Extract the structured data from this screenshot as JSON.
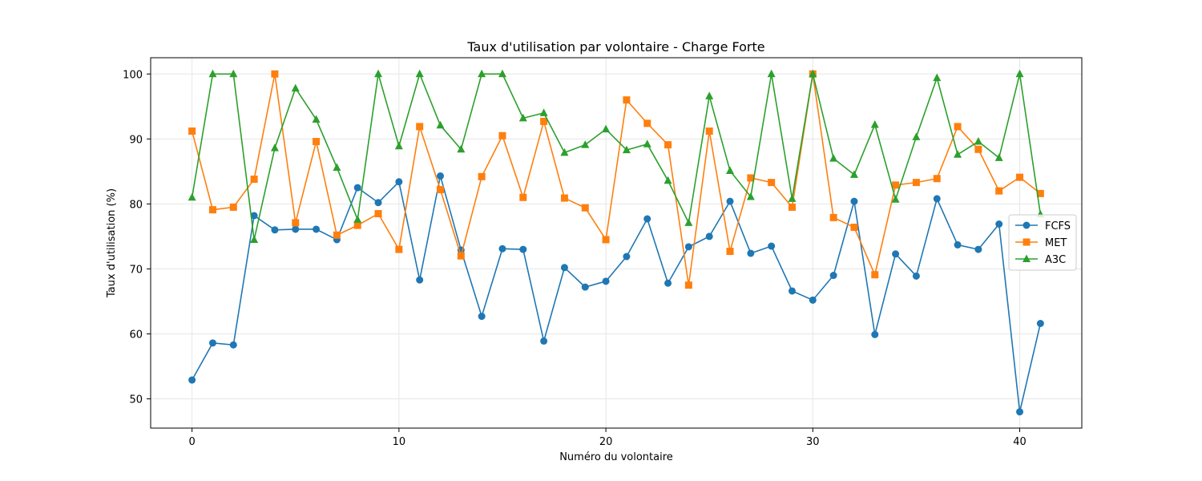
{
  "chart_data": {
    "type": "line",
    "title": "Taux d'utilisation par volontaire - Charge Forte",
    "xlabel": "Numéro du volontaire",
    "ylabel": "Taux d'utilisation (%)",
    "xlim": [
      -2,
      43
    ],
    "ylim": [
      45.5,
      102.5
    ],
    "xticks": [
      0,
      10,
      20,
      30,
      40
    ],
    "yticks": [
      50,
      60,
      70,
      80,
      90,
      100
    ],
    "grid": true,
    "legend_position": "center-right",
    "x": [
      0,
      1,
      2,
      3,
      4,
      5,
      6,
      7,
      8,
      9,
      10,
      11,
      12,
      13,
      14,
      15,
      16,
      17,
      18,
      19,
      20,
      21,
      22,
      23,
      24,
      25,
      26,
      27,
      28,
      29,
      30,
      31,
      32,
      33,
      34,
      35,
      36,
      37,
      38,
      39,
      40,
      41
    ],
    "series": [
      {
        "name": "FCFS",
        "color": "#1f77b4",
        "marker": "circle",
        "values": [
          52.9,
          58.6,
          58.3,
          78.2,
          76.0,
          76.1,
          76.1,
          74.5,
          82.5,
          80.2,
          83.4,
          68.3,
          84.3,
          72.9,
          62.7,
          73.1,
          73.0,
          58.9,
          70.2,
          67.2,
          68.1,
          71.9,
          77.7,
          67.8,
          73.4,
          75.0,
          80.4,
          72.4,
          73.5,
          66.6,
          65.2,
          69.0,
          80.4,
          59.9,
          72.3,
          68.9,
          80.8,
          73.7,
          73.0,
          76.9,
          48.0,
          61.6
        ]
      },
      {
        "name": "MET",
        "color": "#ff7f0e",
        "marker": "square",
        "values": [
          91.2,
          79.1,
          79.5,
          83.8,
          100.0,
          77.1,
          89.6,
          75.2,
          76.7,
          78.5,
          73.0,
          91.9,
          82.2,
          72.0,
          84.2,
          90.5,
          81.0,
          92.7,
          80.9,
          79.4,
          74.5,
          96.0,
          92.4,
          89.1,
          67.5,
          91.2,
          72.7,
          84.0,
          83.3,
          79.5,
          100.0,
          77.9,
          76.4,
          69.1,
          82.9,
          83.3,
          83.9,
          91.9,
          88.4,
          82.0,
          84.1,
          81.6
        ]
      },
      {
        "name": "A3C",
        "color": "#2ca02c",
        "marker": "triangle",
        "values": [
          81.0,
          100.0,
          100.0,
          74.5,
          88.6,
          97.8,
          93.0,
          85.6,
          77.6,
          100.0,
          88.9,
          100.0,
          92.1,
          88.4,
          100.0,
          100.0,
          93.2,
          94.0,
          87.9,
          89.1,
          91.5,
          88.3,
          89.2,
          83.6,
          77.1,
          96.6,
          85.1,
          81.1,
          100.0,
          80.8,
          100.0,
          87.0,
          84.5,
          92.2,
          80.7,
          90.3,
          99.4,
          87.6,
          89.6,
          87.1,
          100.0,
          78.4
        ]
      }
    ]
  }
}
